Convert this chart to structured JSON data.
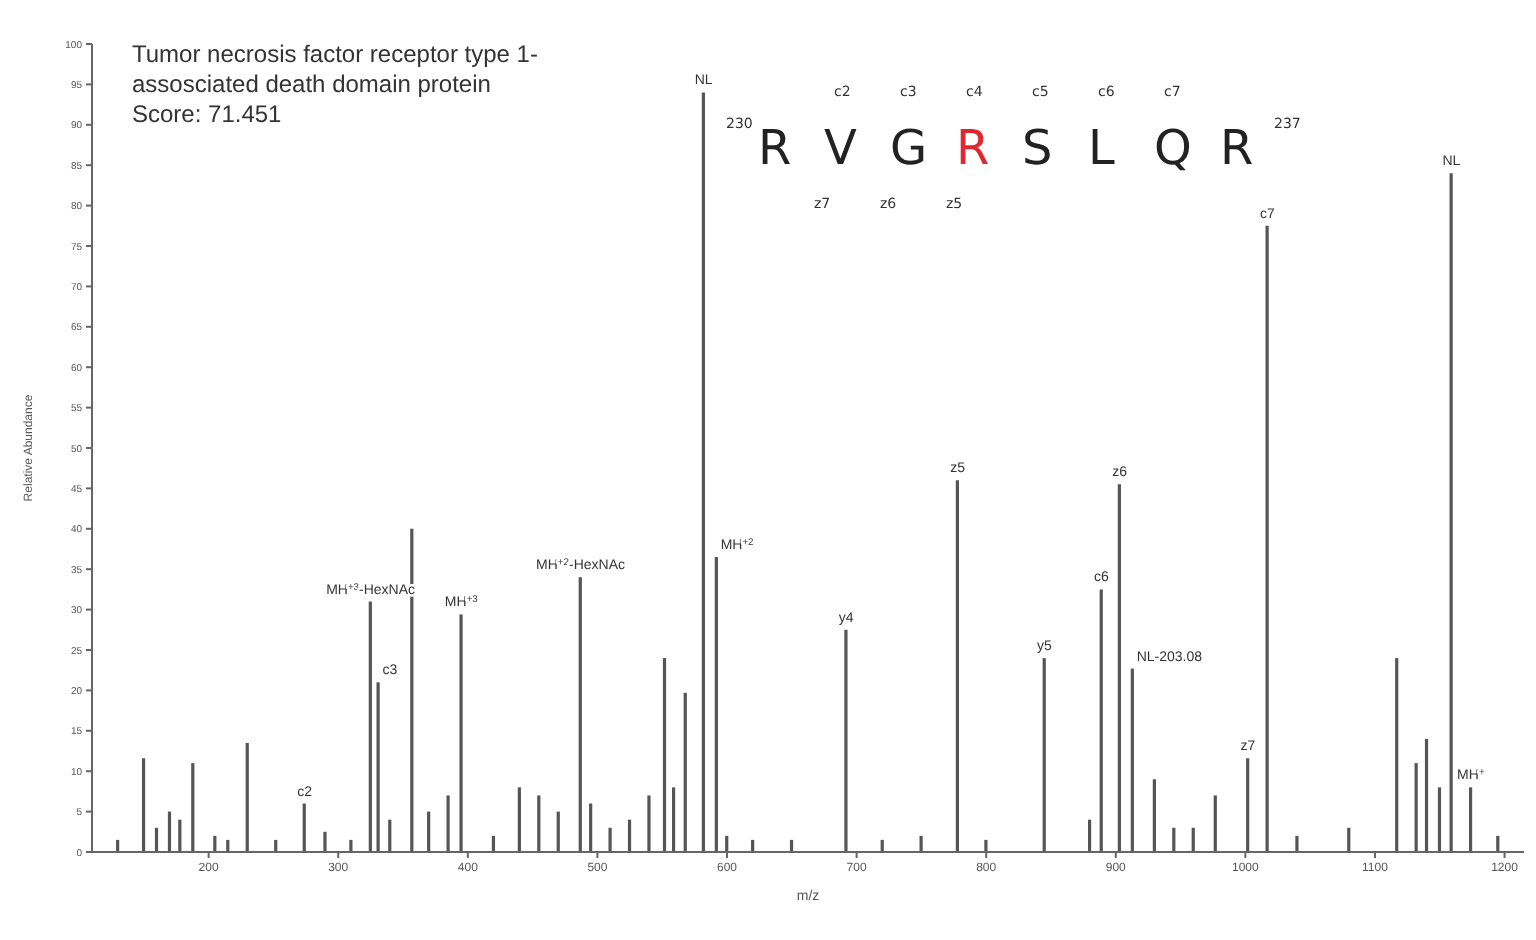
{
  "chart_data": {
    "type": "bar",
    "title": "Tumor necrosis factor receptor type 1-assosciated death domain protein",
    "subtitle": "Score: 71.451",
    "xlabel": "m/z",
    "ylabel": "Relative Abundance",
    "x": [
      130,
      150,
      160,
      170,
      178,
      188,
      205,
      215,
      230,
      252,
      274,
      290,
      310,
      325,
      331,
      340,
      357,
      370,
      385,
      395,
      420,
      440,
      455,
      470,
      487,
      495,
      510,
      525,
      540,
      552,
      559,
      568,
      582,
      592,
      600,
      620,
      650,
      692,
      720,
      750,
      778,
      800,
      845,
      880,
      889,
      903,
      913,
      930,
      945,
      960,
      977,
      1002,
      1017,
      1040,
      1080,
      1117,
      1132,
      1140,
      1150,
      1159,
      1174,
      1195
    ],
    "values": [
      1.5,
      11.6,
      3,
      5,
      4,
      11,
      2,
      1.5,
      13.5,
      1.5,
      6,
      2.5,
      1.5,
      31,
      21,
      4,
      40,
      5,
      7,
      29.4,
      2,
      8,
      7,
      5,
      34,
      6,
      3,
      4,
      7,
      24,
      8,
      19.7,
      94,
      36.5,
      2,
      1.5,
      1.5,
      27.5,
      1.5,
      2,
      46,
      1.5,
      24,
      4,
      32.5,
      45.5,
      22.7,
      9,
      3,
      3,
      7,
      11.6,
      77.5,
      2,
      3,
      24,
      11,
      14,
      8,
      84,
      8,
      2
    ],
    "color": "#555555",
    "xlim": [
      110,
      1215
    ],
    "xticks": [
      200,
      300,
      400,
      500,
      600,
      700,
      800,
      900,
      1000,
      1100,
      1200
    ],
    "ylim": [
      0,
      100
    ],
    "yticks": [
      0,
      5,
      10,
      15,
      20,
      25,
      30,
      35,
      40,
      45,
      50,
      55,
      60,
      65,
      70,
      75,
      80,
      85,
      90,
      95,
      100
    ],
    "annotations": [
      "230",
      "R",
      "V",
      "G",
      "R",
      "S",
      "L",
      "Q",
      "R",
      "237",
      "c2",
      "c3",
      "c4",
      "c5",
      "c6",
      "c7",
      "z7",
      "z6",
      "z5",
      {
        "text": "c2",
        "x": 274,
        "y": 6
      },
      {
        "text": "MH$^{+3}$-HexNAc",
        "x": 325,
        "y": 31
      },
      {
        "text": "c3",
        "x": 331,
        "y": 21
      },
      {
        "text": "MH$^{+3}$",
        "x": 395,
        "y": 29.4
      },
      {
        "text": "MH$^{+2}$-HexNAc",
        "x": 487,
        "y": 34
      },
      {
        "text": "NL",
        "x": 582,
        "y": 94
      },
      {
        "text": "MH$^{+2}$",
        "x": 592,
        "y": 36.5
      },
      {
        "text": "y4",
        "x": 692,
        "y": 27.5
      },
      {
        "text": "z5",
        "x": 778,
        "y": 46
      },
      {
        "text": "y5",
        "x": 845,
        "y": 24
      },
      {
        "text": "c6",
        "x": 889,
        "y": 32.5
      },
      {
        "text": "z6",
        "x": 903,
        "y": 45.5
      },
      {
        "text": "NL-203.08",
        "x": 913,
        "y": 22.7
      },
      {
        "text": "z7",
        "x": 1002,
        "y": 11.6
      },
      {
        "text": "c7",
        "x": 1017,
        "y": 77.5
      },
      {
        "text": "NL",
        "x": 1159,
        "y": 84
      },
      {
        "text": "MH$^{+}$",
        "x": 1174,
        "y": 8
      }
    ]
  }
}
